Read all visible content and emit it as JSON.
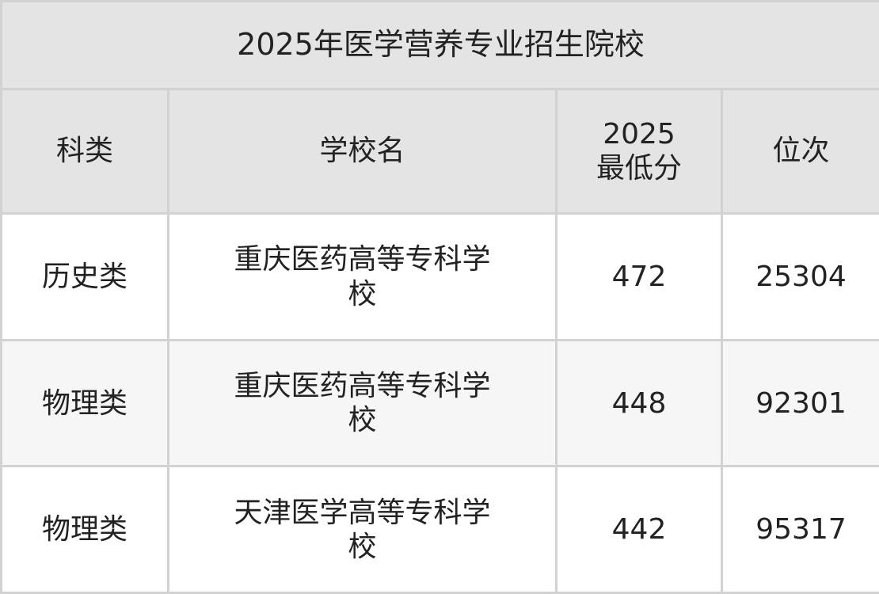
{
  "title": "2025年医学营养专业招生院校",
  "columns": [
    "科类",
    "学校名",
    "2025\n最低分",
    "位次"
  ],
  "column_header_2025": "2025",
  "column_header_min": "最低分",
  "rows": [
    {
      "category": "历史类",
      "school": "重庆医药高等专科学校",
      "min_score": "472",
      "rank": "25304"
    },
    {
      "category": "物理类",
      "school": "重庆医药高等专科学校",
      "min_score": "448",
      "rank": "92301"
    },
    {
      "category": "物理类",
      "school": "天津医学高等专科学校",
      "min_score": "442",
      "rank": "95317"
    }
  ],
  "colors": {
    "header_bg": "#e4e4e4",
    "border": "#d2d2d2",
    "alt_row_bg": "#f6f6f6"
  }
}
